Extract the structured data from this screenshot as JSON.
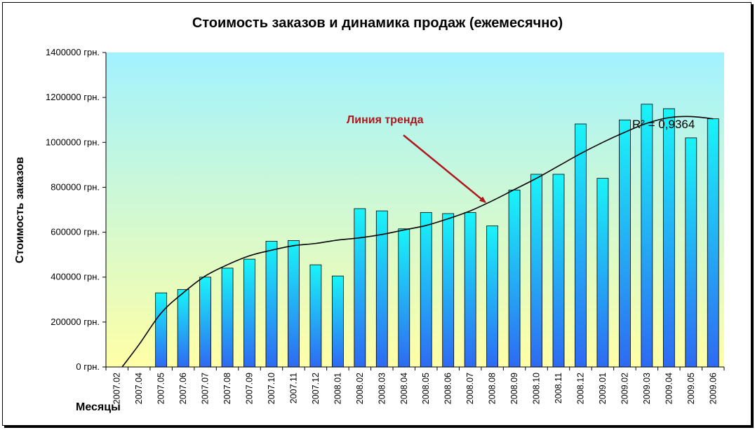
{
  "chart_data": {
    "type": "bar",
    "title": "Стоимость заказов и динамика продаж (ежемесячно)",
    "ylabel": "Стоимость заказов",
    "xlabel": "Месяцы",
    "ylim": [
      0,
      1400000
    ],
    "y_ticks": [
      "0 грн.",
      "200000 грн.",
      "400000 грн.",
      "600000 грн.",
      "800000 грн.",
      "1000000 грн.",
      "1200000 грн.",
      "1400000 грн."
    ],
    "categories": [
      "2007.02",
      "2007.04",
      "2007.05",
      "2007.06",
      "2007.07",
      "2007.08",
      "2007.09",
      "2007.10",
      "2007.11",
      "2007.12",
      "2008.01",
      "2008.02",
      "2008.03",
      "2008.04",
      "2008.05",
      "2008.06",
      "2008.07",
      "2008.08",
      "2008.09",
      "2008.10",
      "2008.11",
      "2008.12",
      "2009.01",
      "2009.02",
      "2009.03",
      "2009.04",
      "2009.05",
      "2009.06"
    ],
    "values": [
      0,
      0,
      330000,
      345000,
      400000,
      440000,
      480000,
      560000,
      563000,
      455000,
      405000,
      705000,
      695000,
      615000,
      688000,
      683000,
      688000,
      628000,
      788000,
      858000,
      858000,
      1082000,
      840000,
      1100000,
      1170000,
      1150000,
      1020000,
      1105000
    ],
    "trendline": {
      "type": "polynomial",
      "label": "Линия тренда",
      "r_squared_text": "R² = 0,9364",
      "values": [
        -30000,
        100000,
        240000,
        330000,
        405000,
        455000,
        495000,
        520000,
        540000,
        550000,
        565000,
        575000,
        590000,
        610000,
        630000,
        660000,
        695000,
        740000,
        790000,
        840000,
        895000,
        950000,
        1000000,
        1045000,
        1085000,
        1110000,
        1115000,
        1105000
      ]
    },
    "grid": false,
    "legend": "none",
    "colors": {
      "bar_top": "#19f4f8",
      "bar_bottom": "#2e6af2",
      "plot_bg_top": "#a2f2ff",
      "plot_bg_bottom": "#ffffa6",
      "trend_line": "#000000",
      "annotation": "#b0171c"
    }
  }
}
